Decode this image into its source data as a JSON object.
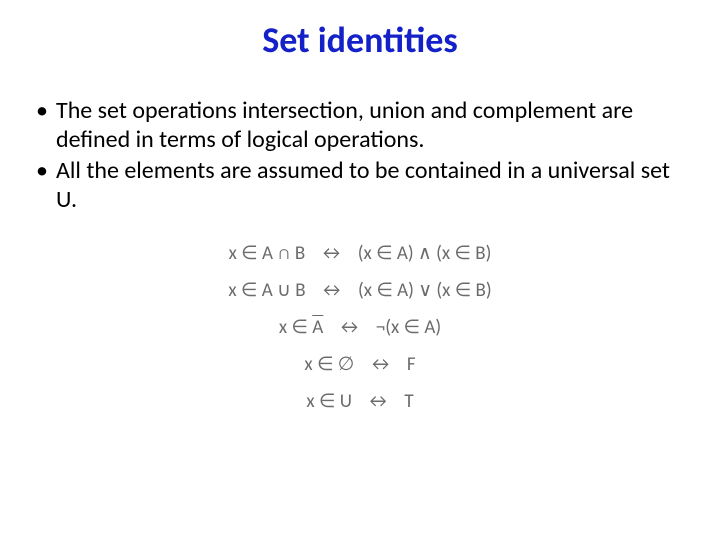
{
  "title": {
    "text": "Set identities",
    "color": "#1420c8",
    "fontsize": 36
  },
  "body": {
    "fontsize": 24,
    "color": "#000000",
    "bullets": [
      "The set operations intersection, union and complement are defined in terms of logical operations.",
      "All the elements are assumed to be contained in a universal set U."
    ]
  },
  "formulas": {
    "fontsize": 19,
    "color": "#6b6b6b",
    "arrow": "↔",
    "lines": [
      {
        "lhs": "x ∈ A ∩ B",
        "rhs": "(x ∈ A) ∧ (x ∈ B)"
      },
      {
        "lhs": "x ∈ A ∪ B",
        "rhs": "(x ∈ A) ∨ (x ∈ B)"
      },
      {
        "lhs_prefix": "x ∈ ",
        "lhs_overline": "A",
        "rhs": "¬(x ∈ A)"
      },
      {
        "lhs": "x ∈ ∅",
        "rhs": "F"
      },
      {
        "lhs": "x ∈ U",
        "rhs": "T"
      }
    ]
  }
}
